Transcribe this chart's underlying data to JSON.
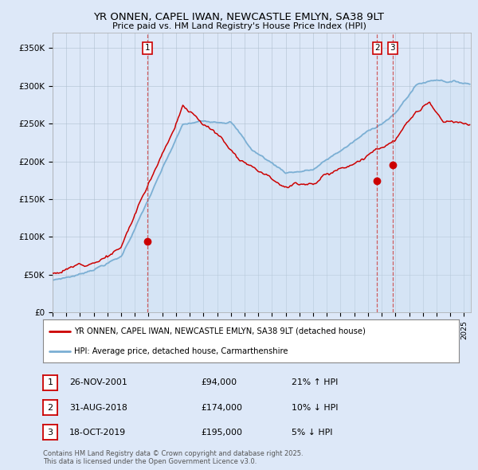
{
  "title": "YR ONNEN, CAPEL IWAN, NEWCASTLE EMLYN, SA38 9LT",
  "subtitle": "Price paid vs. HM Land Registry's House Price Index (HPI)",
  "ylabel_ticks": [
    "£0",
    "£50K",
    "£100K",
    "£150K",
    "£200K",
    "£250K",
    "£300K",
    "£350K"
  ],
  "ytick_values": [
    0,
    50000,
    100000,
    150000,
    200000,
    250000,
    300000,
    350000
  ],
  "ylim": [
    0,
    370000
  ],
  "xlim_start": 1995.0,
  "xlim_end": 2025.5,
  "purchase_dates": [
    2001.9,
    2018.67,
    2019.79
  ],
  "purchase_prices": [
    94000,
    174000,
    195000
  ],
  "purchase_labels": [
    "1",
    "2",
    "3"
  ],
  "vline_color": "#cc4444",
  "red_line_color": "#cc0000",
  "blue_line_color": "#7bafd4",
  "blue_fill_color": "#c8dff0",
  "legend_label_red": "YR ONNEN, CAPEL IWAN, NEWCASTLE EMLYN, SA38 9LT (detached house)",
  "legend_label_blue": "HPI: Average price, detached house, Carmarthenshire",
  "table_rows": [
    [
      "1",
      "26-NOV-2001",
      "£94,000",
      "21% ↑ HPI"
    ],
    [
      "2",
      "31-AUG-2018",
      "£174,000",
      "10% ↓ HPI"
    ],
    [
      "3",
      "18-OCT-2019",
      "£195,000",
      "5% ↓ HPI"
    ]
  ],
  "footer": "Contains HM Land Registry data © Crown copyright and database right 2025.\nThis data is licensed under the Open Government Licence v3.0.",
  "background_color": "#dde8f8",
  "plot_bg_color": "#dde8f8",
  "grid_color": "#b0bfd0"
}
